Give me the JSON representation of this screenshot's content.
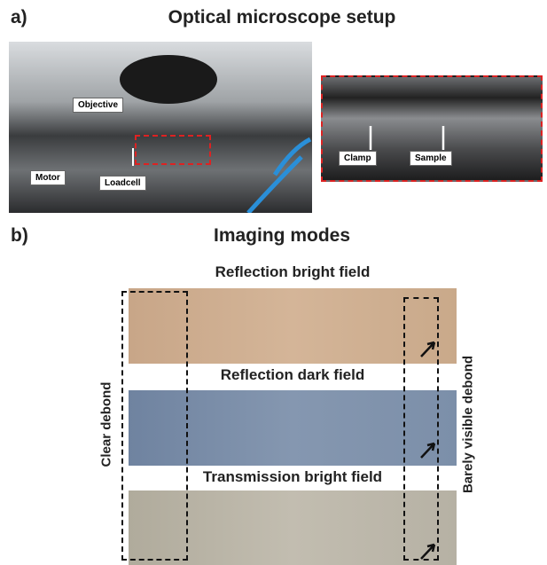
{
  "panel_a": {
    "label": "a)",
    "title": "Optical microscope setup",
    "callouts": [
      "Objective",
      "Motor",
      "Loadcell",
      "Clamp",
      "Sample"
    ]
  },
  "panel_b": {
    "label": "b)",
    "title": "Imaging modes",
    "modes": [
      "Reflection bright field",
      "Reflection dark field",
      "Transmission bright field"
    ],
    "side_labels": [
      "Clear debond",
      "Barely visible debond"
    ]
  }
}
